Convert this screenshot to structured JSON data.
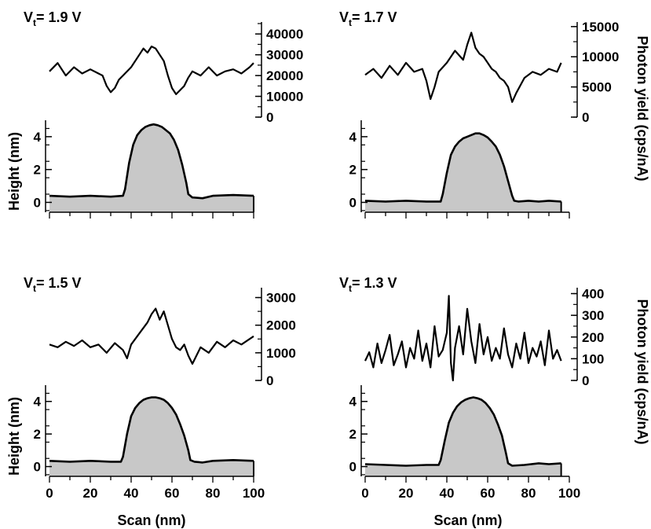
{
  "chart_data": {
    "type": "line",
    "x_axis": {
      "label": "Scan (nm)",
      "range": [
        0,
        100
      ],
      "ticks": [
        "0",
        "20",
        "40",
        "60",
        "80",
        "100"
      ]
    },
    "left_axis_label": "Height (nm)",
    "right_axis_label": "Photon yield (cps/nA)",
    "panels": [
      {
        "id": "p19",
        "label_prefix": "V",
        "label_sub": "t",
        "label_suffix": "= 1.9 V",
        "photon": {
          "ylim": [
            0,
            45000
          ],
          "ticks": [
            "0",
            "10000",
            "20000",
            "30000",
            "40000"
          ],
          "tick_values": [
            0,
            10000,
            20000,
            30000,
            40000
          ],
          "x": [
            0,
            4,
            8,
            12,
            16,
            20,
            24,
            26,
            28,
            30,
            32,
            34,
            36,
            40,
            44,
            46,
            48,
            50,
            52,
            54,
            56,
            58,
            60,
            62,
            64,
            66,
            68,
            70,
            74,
            78,
            82,
            86,
            90,
            94,
            98,
            100
          ],
          "values": [
            22000,
            26000,
            20000,
            24000,
            21000,
            23000,
            21000,
            20000,
            15000,
            12000,
            14000,
            18000,
            20000,
            24000,
            30000,
            33000,
            31000,
            34000,
            33000,
            30000,
            27000,
            20000,
            14000,
            11000,
            13000,
            15000,
            19000,
            22000,
            20000,
            24000,
            20000,
            22000,
            23000,
            21000,
            24000,
            26000
          ]
        },
        "height": {
          "ylim": [
            -0.6,
            5.0
          ],
          "ticks": [
            "0",
            "2",
            "4"
          ],
          "tick_values": [
            0,
            2,
            4
          ],
          "x": [
            0,
            10,
            20,
            30,
            36,
            37,
            39,
            41,
            43,
            45,
            47,
            49,
            51,
            53,
            55,
            57,
            59,
            61,
            63,
            65,
            67,
            68,
            70,
            75,
            80,
            90,
            100
          ],
          "values": [
            0.4,
            0.35,
            0.4,
            0.35,
            0.4,
            0.8,
            2.4,
            3.5,
            4.1,
            4.4,
            4.6,
            4.7,
            4.75,
            4.7,
            4.6,
            4.4,
            4.2,
            3.8,
            3.2,
            2.3,
            1.2,
            0.5,
            0.3,
            0.25,
            0.4,
            0.45,
            0.4
          ]
        }
      },
      {
        "id": "p17",
        "label_prefix": "V",
        "label_sub": "t",
        "label_suffix": "= 1.7 V",
        "photon": {
          "ylim": [
            0,
            15500
          ],
          "ticks": [
            "0",
            "5000",
            "10000",
            "15000"
          ],
          "tick_values": [
            0,
            5000,
            10000,
            15000
          ],
          "x": [
            0,
            4,
            8,
            12,
            16,
            20,
            24,
            28,
            30,
            32,
            34,
            36,
            40,
            44,
            48,
            50,
            52,
            54,
            56,
            58,
            60,
            62,
            64,
            66,
            68,
            70,
            72,
            74,
            78,
            82,
            86,
            90,
            94,
            96
          ],
          "values": [
            7000,
            8000,
            6500,
            8500,
            7000,
            9000,
            7500,
            8000,
            6000,
            3000,
            5000,
            7500,
            9000,
            11000,
            9500,
            12000,
            14000,
            11500,
            10500,
            10000,
            9000,
            8000,
            7500,
            6500,
            6000,
            5000,
            2500,
            4000,
            6500,
            7500,
            7000,
            8000,
            7500,
            9000
          ]
        },
        "height": {
          "ylim": [
            -0.6,
            5.0
          ],
          "ticks": [
            "0",
            "2",
            "4"
          ],
          "tick_values": [
            0,
            2,
            4
          ],
          "x": [
            0,
            10,
            20,
            30,
            37,
            38,
            40,
            42,
            44,
            46,
            48,
            50,
            52,
            54,
            56,
            58,
            60,
            62,
            64,
            66,
            68,
            70,
            72,
            73,
            75,
            80,
            85,
            90,
            96
          ],
          "values": [
            0.1,
            0.05,
            0.1,
            0.05,
            0.05,
            0.5,
            1.8,
            2.9,
            3.4,
            3.7,
            3.9,
            4.0,
            4.1,
            4.2,
            4.2,
            4.1,
            3.95,
            3.7,
            3.4,
            2.9,
            2.2,
            1.3,
            0.4,
            0.1,
            0.05,
            0.1,
            0.05,
            0.1,
            0.05
          ]
        }
      },
      {
        "id": "p15",
        "label_prefix": "V",
        "label_sub": "t",
        "label_suffix": "= 1.5 V",
        "photon": {
          "ylim": [
            0,
            3300
          ],
          "ticks": [
            "0",
            "1000",
            "2000",
            "3000"
          ],
          "tick_values": [
            0,
            1000,
            2000,
            3000
          ],
          "x": [
            0,
            4,
            8,
            12,
            16,
            20,
            24,
            28,
            32,
            36,
            38,
            40,
            44,
            48,
            50,
            52,
            54,
            56,
            58,
            60,
            62,
            64,
            66,
            68,
            70,
            74,
            78,
            82,
            86,
            90,
            94,
            98,
            100
          ],
          "values": [
            1300,
            1200,
            1400,
            1250,
            1450,
            1200,
            1300,
            1000,
            1350,
            1100,
            800,
            1300,
            1700,
            2100,
            2400,
            2600,
            2200,
            2500,
            2000,
            1500,
            1200,
            1100,
            1300,
            900,
            600,
            1200,
            1000,
            1400,
            1200,
            1450,
            1300,
            1500,
            1600
          ]
        },
        "height": {
          "ylim": [
            -0.6,
            5.0
          ],
          "ticks": [
            "0",
            "2",
            "4"
          ],
          "tick_values": [
            0,
            2,
            4
          ],
          "x": [
            0,
            10,
            20,
            30,
            35,
            36,
            38,
            40,
            42,
            44,
            46,
            48,
            50,
            52,
            54,
            56,
            58,
            60,
            62,
            64,
            66,
            68,
            69,
            71,
            75,
            80,
            90,
            100
          ],
          "values": [
            0.35,
            0.3,
            0.35,
            0.3,
            0.3,
            0.6,
            2.0,
            3.1,
            3.6,
            3.9,
            4.1,
            4.2,
            4.25,
            4.25,
            4.2,
            4.1,
            3.9,
            3.6,
            3.2,
            2.6,
            1.9,
            1.0,
            0.4,
            0.3,
            0.25,
            0.35,
            0.4,
            0.35
          ]
        }
      },
      {
        "id": "p13",
        "label_prefix": "V",
        "label_sub": "t",
        "label_suffix": "= 1.3 V",
        "photon": {
          "ylim": [
            0,
            420
          ],
          "ticks": [
            "0",
            "100",
            "200",
            "300",
            "400"
          ],
          "tick_values": [
            0,
            100,
            200,
            300,
            400
          ],
          "x": [
            0,
            2,
            4,
            6,
            8,
            10,
            12,
            14,
            16,
            18,
            20,
            22,
            24,
            26,
            28,
            30,
            32,
            34,
            36,
            38,
            40,
            41,
            42,
            43,
            44,
            46,
            48,
            50,
            52,
            54,
            56,
            58,
            60,
            62,
            64,
            66,
            68,
            70,
            72,
            74,
            76,
            78,
            80,
            82,
            84,
            86,
            88,
            90,
            92,
            94,
            96
          ],
          "values": [
            90,
            130,
            60,
            170,
            80,
            140,
            210,
            70,
            120,
            180,
            60,
            150,
            100,
            230,
            90,
            170,
            60,
            250,
            110,
            140,
            220,
            390,
            80,
            0,
            150,
            250,
            120,
            330,
            180,
            80,
            260,
            120,
            200,
            90,
            150,
            100,
            240,
            120,
            60,
            170,
            100,
            220,
            80,
            150,
            110,
            180,
            70,
            230,
            100,
            140,
            90
          ]
        },
        "height": {
          "ylim": [
            -0.6,
            5.0
          ],
          "ticks": [
            "0",
            "2",
            "4"
          ],
          "tick_values": [
            0,
            2,
            4
          ],
          "x": [
            0,
            10,
            20,
            30,
            36,
            37,
            39,
            41,
            43,
            45,
            47,
            49,
            51,
            53,
            55,
            57,
            59,
            61,
            63,
            65,
            67,
            69,
            70,
            72,
            78,
            85,
            90,
            96
          ],
          "values": [
            0.15,
            0.1,
            0.05,
            0.1,
            0.1,
            0.4,
            1.6,
            2.7,
            3.3,
            3.7,
            3.95,
            4.1,
            4.2,
            4.25,
            4.2,
            4.1,
            3.9,
            3.6,
            3.2,
            2.6,
            1.9,
            0.8,
            0.2,
            0.05,
            0.1,
            0.2,
            0.15,
            0.2
          ]
        }
      }
    ]
  }
}
